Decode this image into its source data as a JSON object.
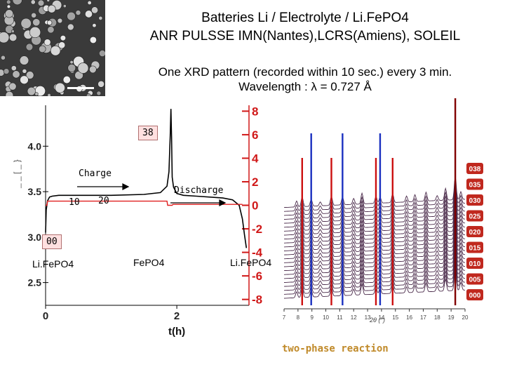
{
  "header": {
    "title_line1": "Batteries Li / Electrolyte / Li.FePO4",
    "title_line2": "ANR PULSSE IMN(Nantes),LCRS(Amiens), SOLEIL",
    "subtitle_line1": "One XRD pattern (recorded within 10 sec.) every 3 min.",
    "subtitle_line2": "Wavelength : λ = 0.727 Å"
  },
  "labels": {
    "charge": "Charge",
    "discharge": "Discharge",
    "tag_38": "38",
    "tag_10": "10",
    "tag_20": "20",
    "tag_00": "00",
    "phase_left": "Li.FePO4",
    "phase_mid": "FePO4",
    "phase_right": "Li.FePO4",
    "two_phase": "two-phase reaction"
  },
  "colors": {
    "voltage_curve": "#000000",
    "current_curve": "#e02020",
    "current_axis": "#d01818",
    "xrd_traces": "#4a2a4a",
    "xrd_label_bg": "#c0281e",
    "marker_red": "#cc1010",
    "marker_blue": "#1a30c0",
    "marker_darkred": "#800000"
  },
  "chart_data": [
    {
      "type": "line",
      "xlabel": "t(h)",
      "ylabel": "",
      "xlim": [
        0,
        3.1
      ],
      "ylim": [
        2.25,
        4.45
      ],
      "x_ticks": [
        "0",
        "2"
      ],
      "y_ticks": [
        "2.5",
        "3.0",
        "3.5",
        "4.0"
      ],
      "y2lim": [
        -8.5,
        8.5
      ],
      "y2_ticks": [
        "8",
        "6",
        "4",
        "2",
        "0",
        "-2",
        "-4",
        "-6",
        "-8"
      ],
      "series": [
        {
          "role": "voltage",
          "x": [
            0.0,
            0.01,
            0.03,
            0.06,
            0.1,
            0.2,
            0.5,
            1.0,
            1.5,
            1.75,
            1.85,
            1.88,
            1.9,
            1.91,
            1.92,
            1.93,
            1.95,
            2.0,
            2.1,
            2.3,
            2.7,
            2.85,
            2.95,
            3.0,
            3.03,
            3.06
          ],
          "y": [
            3.05,
            3.3,
            3.4,
            3.44,
            3.45,
            3.46,
            3.46,
            3.46,
            3.47,
            3.49,
            3.56,
            3.72,
            4.12,
            4.41,
            4.1,
            3.66,
            3.55,
            3.48,
            3.46,
            3.45,
            3.43,
            3.41,
            3.35,
            3.2,
            3.03,
            2.88
          ]
        },
        {
          "role": "current",
          "x": [
            0.0,
            0.02,
            0.03,
            1.85,
            1.86,
            1.93,
            1.94,
            3.0
          ],
          "y": [
            0.0,
            0.0,
            0.35,
            0.35,
            0.0,
            0.0,
            0.08,
            0.08
          ]
        }
      ]
    },
    {
      "type": "line",
      "xlabel": "2θ (°)",
      "ylabel": "",
      "x_ticks": [
        "7",
        "8",
        "9",
        "10",
        "11",
        "12",
        "13",
        "14",
        "15",
        "16",
        "17",
        "18",
        "19",
        "20"
      ],
      "xlim": [
        7,
        20
      ],
      "series_labels": [
        "038",
        "035",
        "030",
        "025",
        "020",
        "015",
        "010",
        "005",
        "000"
      ],
      "marker_lines": {
        "red": [
          8.3,
          10.4,
          13.6,
          14.8
        ],
        "blue": [
          8.95,
          11.2,
          13.9
        ],
        "darkred": [
          19.3
        ]
      }
    }
  ]
}
